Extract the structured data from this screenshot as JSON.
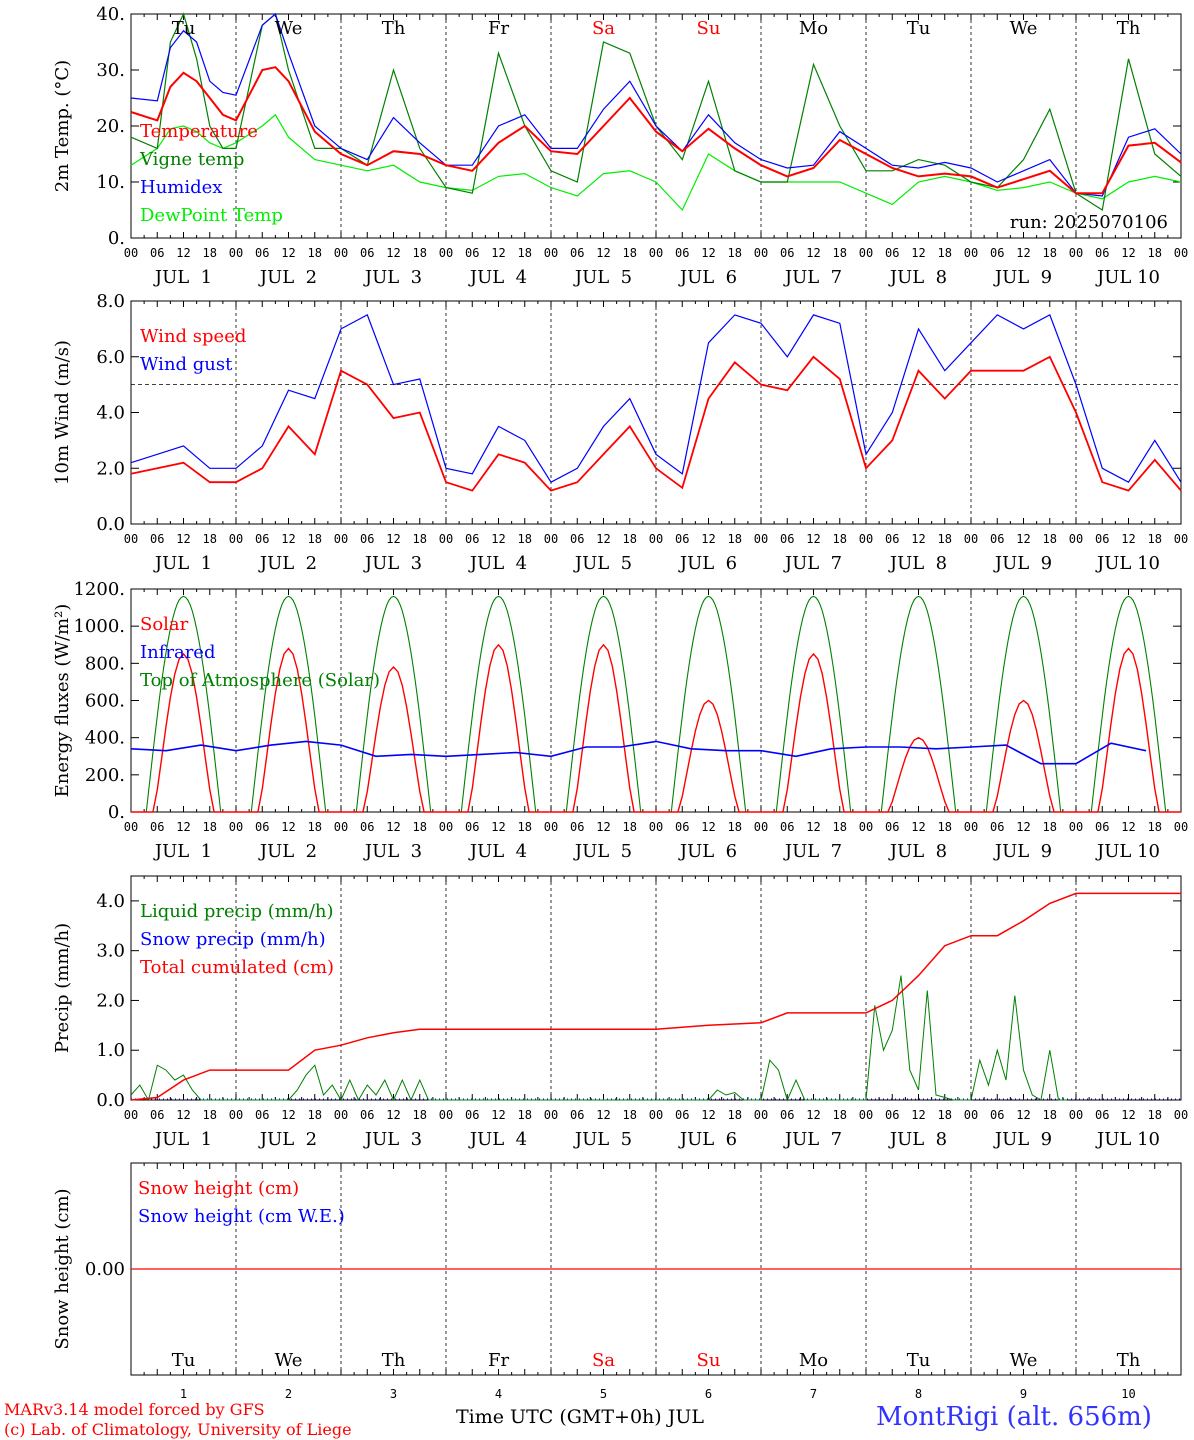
{
  "run_label": "run: 2025070106",
  "xlabel": "Time UTC (GMT+0h) JUL",
  "station": "MontRigi (alt. 656m)",
  "credit_1": "MARv3.14 model forced by GFS",
  "credit_2": "(c) Lab. of Climatology, University of Liege",
  "colors": {
    "red": "#ff0000",
    "darkgreen": "#008000",
    "blue": "#0000ff",
    "lightgreen": "#00ee00",
    "weekend": "#ff0000"
  },
  "day_names": [
    "Tu",
    "We",
    "Th",
    "Fr",
    "Sa",
    "Su",
    "Mo",
    "Tu",
    "We",
    "Th"
  ],
  "weekend_days": [
    4,
    5
  ],
  "date_labels": [
    "JUL  1",
    "JUL  2",
    "JUL  3",
    "JUL  4",
    "JUL  5",
    "JUL  6",
    "JUL  7",
    "JUL  8",
    "JUL  9",
    "JUL 10"
  ],
  "day_numbers": [
    "1",
    "2",
    "3",
    "4",
    "5",
    "6",
    "7",
    "8",
    "9",
    "10"
  ],
  "hour_labels": [
    "00",
    "06",
    "12",
    "18"
  ],
  "chart_data": [
    {
      "type": "line",
      "ylabel": "2m Temp. (°C)",
      "ylim": [
        0,
        40
      ],
      "yticks": [
        "0.",
        "10.",
        "20.",
        "30.",
        "40."
      ],
      "legend": [
        "Temperature",
        "Vigne temp",
        "Humidex",
        "DewPoint Temp"
      ],
      "x_hours": [
        0,
        6,
        9,
        12,
        15,
        18,
        21,
        24,
        30,
        33,
        36,
        42,
        48,
        54,
        60,
        66,
        72,
        78,
        84,
        90,
        96,
        102,
        108,
        114,
        120,
        126,
        132,
        138,
        144,
        150,
        156,
        162,
        168,
        174,
        180,
        186,
        192,
        198,
        204,
        210,
        216,
        222,
        228,
        234,
        240
      ],
      "series": [
        {
          "name": "Temperature",
          "color": "red",
          "values": [
            22.5,
            21,
            27,
            29.5,
            28,
            25,
            22,
            21,
            30,
            30.5,
            28,
            19,
            15,
            13,
            15.5,
            15,
            13,
            12,
            17,
            20,
            15.5,
            15,
            20,
            25,
            19,
            15.5,
            19.5,
            16,
            13,
            11,
            12.5,
            17.5,
            15,
            12.5,
            11,
            11.5,
            11,
            9,
            10.5,
            12,
            8,
            8,
            16.5,
            17,
            13.5
          ]
        },
        {
          "name": "Vigne temp",
          "color": "darkgreen",
          "values": [
            18,
            16,
            35,
            40,
            32,
            20,
            16,
            16,
            38,
            40,
            30,
            16,
            16,
            13,
            30,
            16,
            9,
            8,
            33,
            20,
            12,
            10,
            35,
            33,
            20,
            14,
            28,
            12,
            10,
            10,
            31,
            20,
            12,
            12,
            14,
            13,
            10,
            9,
            14,
            23,
            8,
            5,
            32,
            15,
            11
          ]
        },
        {
          "name": "Humidex",
          "color": "blue",
          "values": [
            25,
            24.5,
            34,
            37,
            35,
            28,
            26,
            25.5,
            38,
            40,
            33,
            20,
            16,
            14,
            21.5,
            17,
            13,
            13,
            20,
            22,
            16,
            16,
            23,
            28,
            20,
            15.5,
            22,
            17,
            14,
            12.5,
            13,
            19,
            16,
            13,
            12.5,
            13.5,
            12.5,
            10,
            12,
            14,
            8,
            7.5,
            18,
            19.5,
            15
          ]
        },
        {
          "name": "DewPoint Temp",
          "color": "lightgreen",
          "values": [
            13,
            16,
            19.5,
            20,
            19,
            17,
            16,
            17,
            20,
            22,
            18,
            14,
            13,
            12,
            13,
            10,
            9,
            8.5,
            11,
            11.5,
            9,
            7.5,
            11.5,
            12,
            10,
            5,
            15,
            12,
            10,
            10,
            10,
            10,
            8,
            6,
            10,
            11,
            10,
            8.5,
            9,
            10,
            8,
            7,
            10,
            11,
            10
          ]
        }
      ]
    },
    {
      "type": "line",
      "ylabel": "10m Wind (m/s)",
      "ylim": [
        0,
        8
      ],
      "yticks": [
        "0.0",
        "2.0",
        "4.0",
        "6.0",
        "8.0"
      ],
      "reference_line": 5.0,
      "legend": [
        "Wind speed",
        "Wind gust"
      ],
      "x_hours": [
        0,
        6,
        12,
        18,
        24,
        30,
        36,
        42,
        48,
        54,
        60,
        66,
        72,
        78,
        84,
        90,
        96,
        102,
        108,
        114,
        120,
        126,
        132,
        138,
        144,
        150,
        156,
        162,
        168,
        174,
        180,
        186,
        192,
        198,
        204,
        210,
        216,
        222,
        228,
        234,
        240
      ],
      "series": [
        {
          "name": "Wind speed",
          "color": "red",
          "values": [
            1.8,
            2,
            2.2,
            1.5,
            1.5,
            2,
            3.5,
            2.5,
            5.5,
            5,
            3.8,
            4,
            1.5,
            1.2,
            2.5,
            2.2,
            1.2,
            1.5,
            2.5,
            3.5,
            2,
            1.3,
            4.5,
            5.8,
            5,
            4.8,
            6,
            5.2,
            2,
            3,
            5.5,
            4.5,
            5.5,
            5.5,
            5.5,
            6,
            4,
            1.5,
            1.2,
            2.3,
            1.2
          ]
        },
        {
          "name": "Wind gust",
          "color": "blue",
          "values": [
            2.2,
            2.5,
            2.8,
            2,
            2,
            2.8,
            4.8,
            4.5,
            7,
            7.5,
            5,
            5.2,
            2,
            1.8,
            3.5,
            3,
            1.5,
            2,
            3.5,
            4.5,
            2.5,
            1.8,
            6.5,
            7.5,
            7.2,
            6,
            7.5,
            7.2,
            2.5,
            4,
            7,
            5.5,
            6.5,
            7.5,
            7,
            7.5,
            5,
            2,
            1.5,
            3,
            1.5
          ]
        }
      ]
    },
    {
      "type": "line",
      "ylabel": "Energy fluxes (W/m²)",
      "ylim": [
        0,
        1200
      ],
      "yticks": [
        "0.",
        "200.",
        "400.",
        "600.",
        "800.",
        "1000.",
        "1200."
      ],
      "legend": [
        "Solar",
        "Infrared",
        "Top of Atmosphere (Solar)"
      ],
      "series": [
        {
          "name": "Top of Atmosphere (Solar)",
          "color": "darkgreen",
          "daily_peak": 1160,
          "day_start_hour": 3.5,
          "day_end_hour": 20.5
        },
        {
          "name": "Solar",
          "color": "red",
          "daily_peaks": [
            850,
            880,
            780,
            900,
            900,
            600,
            850,
            400,
            600,
            880
          ]
        },
        {
          "name": "Infrared",
          "color": "blue",
          "values": [
            340,
            330,
            360,
            330,
            360,
            380,
            360,
            300,
            310,
            300,
            310,
            320,
            300,
            350,
            350,
            380,
            340,
            330,
            330,
            300,
            340,
            350,
            350,
            340,
            350,
            360,
            260,
            260,
            370,
            330
          ],
          "x_step_hours": 8
        }
      ]
    },
    {
      "type": "line",
      "ylabel": "Precip (mm/h)",
      "ylim": [
        0,
        4.5
      ],
      "yticks": [
        "0.0",
        "1.0",
        "2.0",
        "3.0",
        "4.0"
      ],
      "legend": [
        "Liquid precip (mm/h)",
        "Snow precip (mm/h)",
        "Total cumulated (cm)"
      ],
      "series": [
        {
          "name": "Total cumulated (cm)",
          "color": "red",
          "x_hours": [
            0,
            6,
            12,
            18,
            24,
            36,
            42,
            48,
            54,
            60,
            66,
            72,
            96,
            120,
            132,
            144,
            150,
            168,
            174,
            180,
            186,
            192,
            198,
            204,
            210,
            216,
            240
          ],
          "values": [
            0,
            0.05,
            0.4,
            0.6,
            0.6,
            0.6,
            1.0,
            1.1,
            1.25,
            1.35,
            1.42,
            1.42,
            1.42,
            1.42,
            1.5,
            1.55,
            1.75,
            1.75,
            2.0,
            2.5,
            3.1,
            3.3,
            3.3,
            3.6,
            3.95,
            4.15,
            4.15
          ]
        },
        {
          "name": "Liquid precip (mm/h)",
          "color": "darkgreen",
          "x_hours": [
            0,
            2,
            4,
            6,
            8,
            10,
            12,
            14,
            16,
            18,
            36,
            38,
            40,
            42,
            44,
            46,
            48,
            50,
            52,
            54,
            56,
            58,
            60,
            62,
            64,
            66,
            68,
            132,
            134,
            136,
            138,
            140,
            144,
            146,
            148,
            150,
            152,
            154,
            168,
            170,
            172,
            174,
            176,
            178,
            180,
            182,
            184,
            186,
            188,
            190,
            192,
            194,
            196,
            198,
            200,
            202,
            204,
            206,
            208,
            210,
            212,
            214
          ],
          "values": [
            0.1,
            0.3,
            0,
            0.7,
            0.6,
            0.4,
            0.5,
            0.2,
            0,
            0,
            0,
            0.2,
            0.5,
            0.7,
            0.1,
            0.3,
            0,
            0.4,
            0,
            0.3,
            0.1,
            0.4,
            0,
            0.4,
            0,
            0.4,
            0,
            0,
            0.2,
            0.1,
            0.15,
            0,
            0,
            0.8,
            0.6,
            0,
            0.4,
            0,
            0,
            1.9,
            1.0,
            1.4,
            2.5,
            0.6,
            0.2,
            2.2,
            0.1,
            0.05,
            0,
            0,
            0,
            0.8,
            0.3,
            1.0,
            0.4,
            2.1,
            0.6,
            0.1,
            0,
            1.0,
            0,
            0
          ]
        },
        {
          "name": "Snow precip (mm/h)",
          "color": "blue",
          "values": [
            0
          ]
        }
      ]
    },
    {
      "type": "line",
      "ylabel": "Snow height (cm)",
      "ytick": "0.00",
      "legend": [
        "Snow height (cm)",
        "Snow height (cm W.E.)"
      ],
      "series": [
        {
          "name": "Snow height (cm)",
          "color": "red",
          "values": [
            0,
            0
          ]
        },
        {
          "name": "Snow height (cm W.E.)",
          "color": "blue",
          "values": [
            0,
            0
          ]
        }
      ]
    }
  ]
}
